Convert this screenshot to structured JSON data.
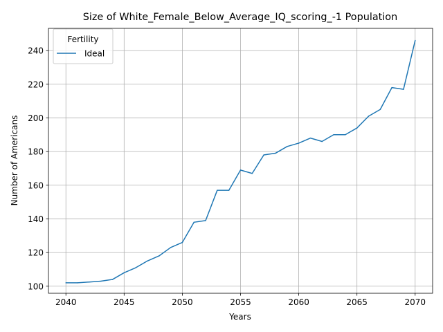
{
  "chart_data": {
    "type": "line",
    "title": "Size of White_Female_Below_Average_IQ_scoring_-1 Population",
    "xlabel": "Years",
    "ylabel": "Number of Americans",
    "xlim": [
      2038.5,
      2071.5
    ],
    "ylim": [
      95.8,
      253.2
    ],
    "grid": true,
    "legend": {
      "title": "Fertility",
      "placement": "top-left"
    },
    "xticks": [
      2040,
      2045,
      2050,
      2055,
      2060,
      2065,
      2070
    ],
    "yticks": [
      100,
      120,
      140,
      160,
      180,
      200,
      220,
      240
    ],
    "x": [
      2040,
      2041,
      2042,
      2043,
      2044,
      2045,
      2046,
      2047,
      2048,
      2049,
      2050,
      2051,
      2052,
      2053,
      2054,
      2055,
      2056,
      2057,
      2058,
      2059,
      2060,
      2061,
      2062,
      2063,
      2064,
      2065,
      2066,
      2067,
      2068,
      2069,
      2070
    ],
    "series": [
      {
        "name": "Ideal",
        "color": "#1f77b4",
        "values": [
          102,
          102,
          102.5,
          103,
          104,
          108,
          111,
          115,
          118,
          123,
          126,
          138,
          139,
          157,
          157,
          169,
          167,
          178,
          179,
          183,
          185,
          188,
          186,
          190,
          190,
          194,
          201,
          205,
          218,
          217,
          246
        ]
      }
    ]
  }
}
